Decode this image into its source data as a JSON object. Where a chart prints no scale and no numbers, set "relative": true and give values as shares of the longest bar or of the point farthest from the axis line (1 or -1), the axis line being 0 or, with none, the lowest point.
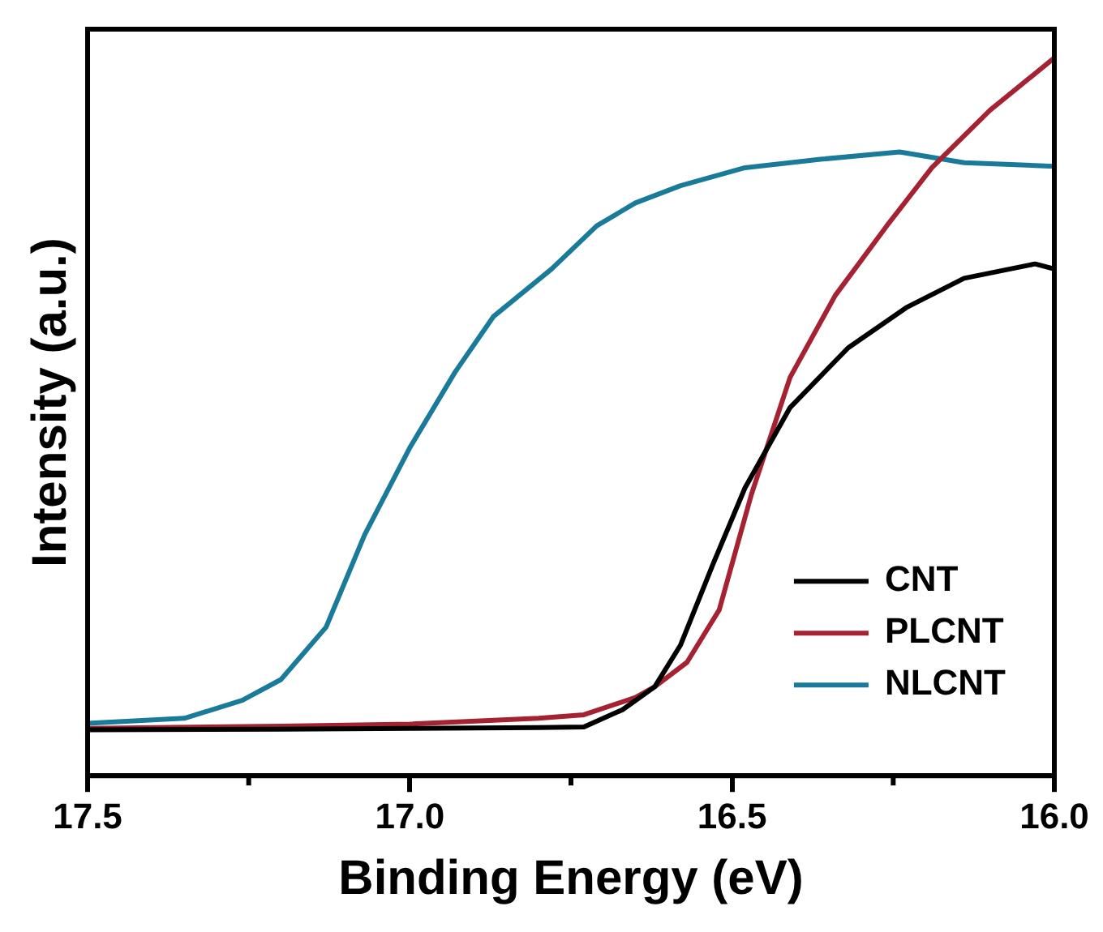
{
  "chart_data": {
    "type": "line",
    "xlabel": "Binding Energy (eV)",
    "ylabel": "Intensity (a.u.)",
    "relative": true,
    "xlim": [
      17.5,
      16.0
    ],
    "xticks": [
      17.5,
      {
        "value": 17,
        "label": "17.0"
      },
      16.5,
      {
        "value": 16,
        "label": "16.0"
      }
    ],
    "legend": "bottom right",
    "grid": false,
    "marker": "none",
    "line_style": "solid",
    "series": [
      {
        "name": "CNT",
        "color": "#000000",
        "x": [
          17.5,
          17.2,
          17.0,
          16.8,
          16.73,
          16.67,
          16.62,
          16.58,
          16.53,
          16.48,
          16.41,
          16.32,
          16.23,
          16.14,
          16.03,
          16.0
        ],
        "values": [
          0.064,
          0.065,
          0.066,
          0.067,
          0.068,
          0.092,
          0.124,
          0.182,
          0.294,
          0.401,
          0.513,
          0.596,
          0.652,
          0.693,
          0.713,
          0.706
        ]
      },
      {
        "name": "PLCNT",
        "color": "#a52233",
        "x": [
          17.5,
          17.2,
          17.0,
          16.8,
          16.73,
          16.65,
          16.62,
          16.57,
          16.52,
          16.47,
          16.41,
          16.34,
          16.26,
          16.19,
          16.1,
          16.0
        ],
        "values": [
          0.066,
          0.069,
          0.072,
          0.08,
          0.085,
          0.109,
          0.124,
          0.158,
          0.231,
          0.392,
          0.555,
          0.669,
          0.766,
          0.847,
          0.927,
          1.0
        ]
      },
      {
        "name": "NLCNT",
        "color": "#1a7a9a",
        "x": [
          17.5,
          17.35,
          17.26,
          17.2,
          17.13,
          17.07,
          17.0,
          16.93,
          16.87,
          16.78,
          16.71,
          16.65,
          16.58,
          16.48,
          16.36,
          16.24,
          16.14,
          16.0
        ],
        "values": [
          0.073,
          0.08,
          0.105,
          0.134,
          0.207,
          0.336,
          0.457,
          0.562,
          0.64,
          0.706,
          0.766,
          0.798,
          0.822,
          0.847,
          0.859,
          0.869,
          0.854,
          0.849
        ]
      }
    ]
  }
}
